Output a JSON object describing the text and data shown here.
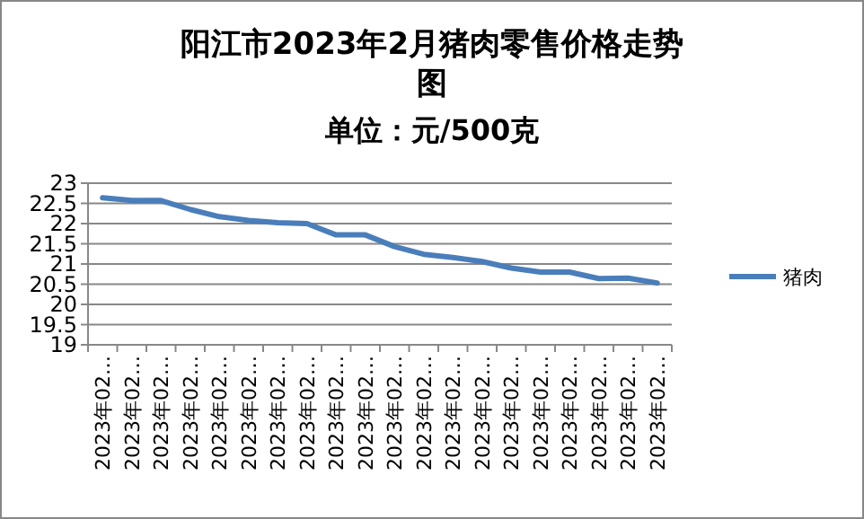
{
  "chart_data": {
    "type": "line",
    "title": "阳江市2023年2月猪肉零售价格走势图",
    "subtitle": "单位：元/500克",
    "categories": [
      "2023年02…",
      "2023年02…",
      "2023年02…",
      "2023年02…",
      "2023年02…",
      "2023年02…",
      "2023年02…",
      "2023年02…",
      "2023年02…",
      "2023年02…",
      "2023年02…",
      "2023年02…",
      "2023年02…",
      "2023年02…",
      "2023年02…",
      "2023年02…",
      "2023年02…",
      "2023年02…",
      "2023年02…",
      "2023年02…"
    ],
    "series": [
      {
        "name": "猪肉",
        "color": "#4a7ebb",
        "values": [
          22.64,
          22.57,
          22.57,
          22.35,
          22.17,
          22.08,
          22.02,
          22.0,
          21.72,
          21.72,
          21.43,
          21.24,
          21.16,
          21.06,
          20.9,
          20.8,
          20.8,
          20.64,
          20.65,
          20.53
        ]
      }
    ],
    "ylim": [
      19,
      23
    ],
    "yticks": [
      19,
      19.5,
      20,
      20.5,
      21,
      21.5,
      22,
      22.5,
      23
    ],
    "grid": "y",
    "legend": "right",
    "marker": "none",
    "line_style": "solid"
  }
}
